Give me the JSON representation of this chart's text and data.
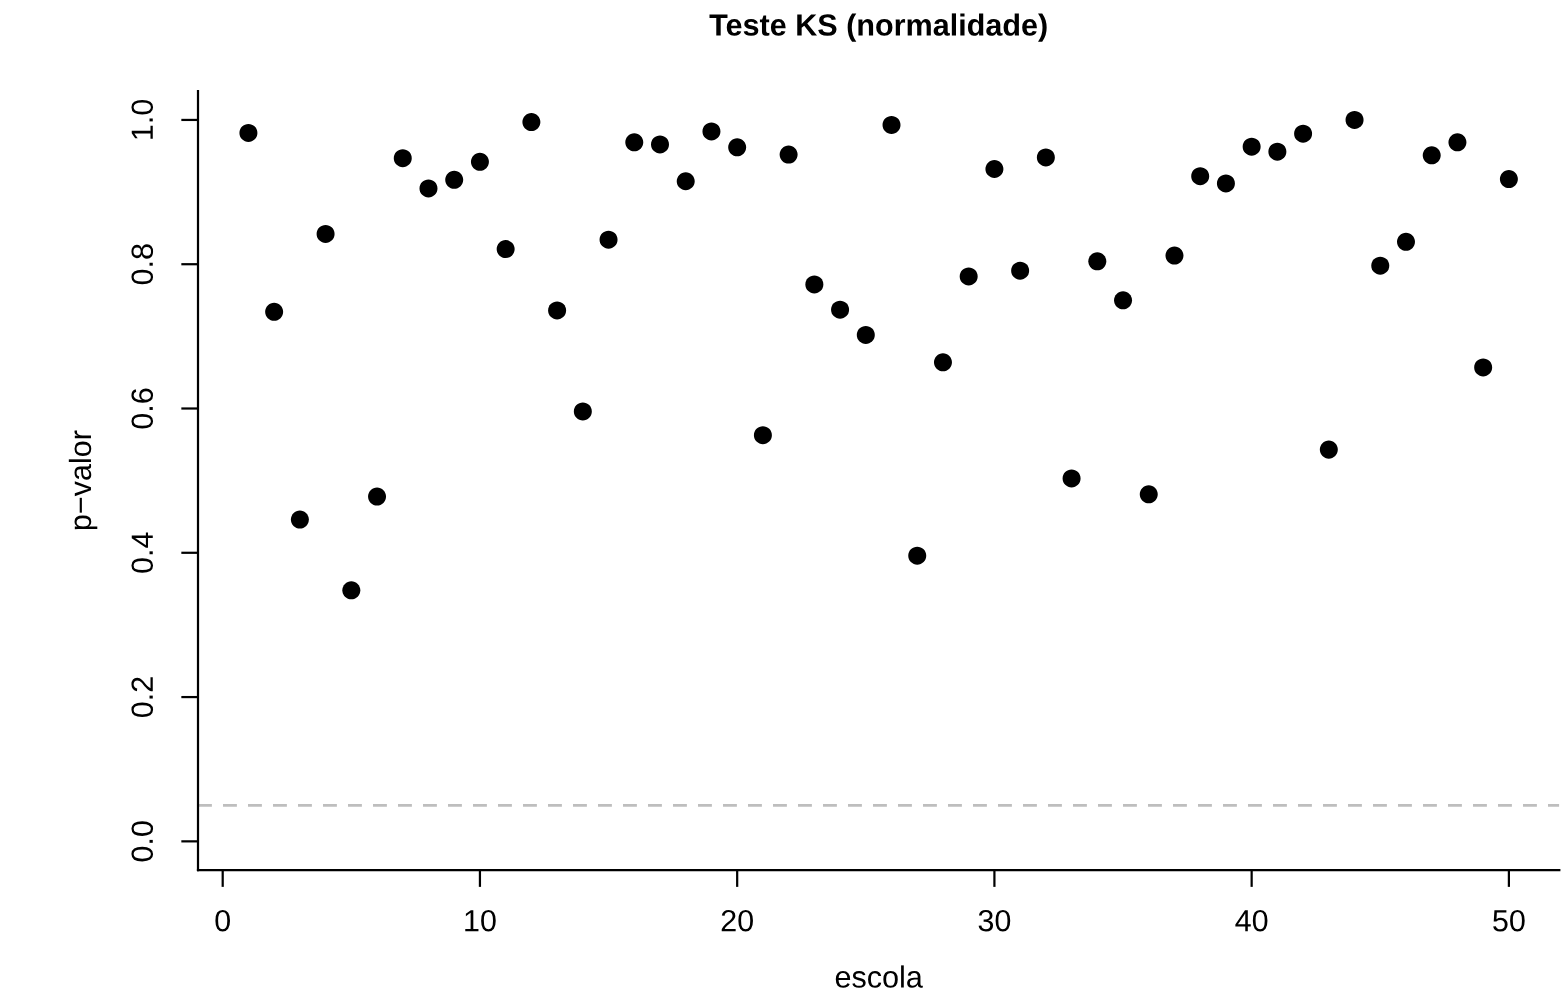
{
  "chart_data": {
    "type": "scatter",
    "title": "Teste KS (normalidade)",
    "xlabel": "escola",
    "ylabel": "p−valor",
    "x": [
      1,
      2,
      3,
      4,
      5,
      6,
      7,
      8,
      9,
      10,
      11,
      12,
      13,
      14,
      15,
      16,
      17,
      18,
      19,
      20,
      21,
      22,
      23,
      24,
      25,
      26,
      27,
      28,
      29,
      30,
      31,
      32,
      33,
      34,
      35,
      36,
      37,
      38,
      39,
      40,
      41,
      42,
      43,
      44,
      45,
      46,
      47,
      48,
      49,
      50
    ],
    "series": [
      {
        "color": "#000000",
        "values": [
          0.982,
          0.734,
          0.446,
          0.842,
          0.348,
          0.478,
          0.947,
          0.905,
          0.917,
          0.942,
          0.821,
          0.997,
          0.736,
          0.596,
          0.834,
          0.969,
          0.966,
          0.915,
          0.984,
          0.962,
          0.563,
          0.952,
          0.772,
          0.737,
          0.702,
          0.993,
          0.396,
          0.664,
          0.783,
          0.932,
          0.791,
          0.948,
          0.503,
          0.804,
          0.75,
          0.481,
          0.812,
          0.922,
          0.912,
          0.963,
          0.956,
          0.981,
          0.543,
          1.0,
          0.798,
          0.831,
          0.951,
          0.969,
          0.657,
          0.918
        ]
      }
    ],
    "marker": "circle",
    "xlim": [
      -0.96,
      51.96
    ],
    "ylim": [
      -0.04,
      1.04
    ],
    "xticks": [
      0,
      10,
      20,
      30,
      40,
      50
    ],
    "yticks": [
      {
        "value": 0,
        "label": "0.0"
      },
      {
        "value": 0.2,
        "label": "0.2"
      },
      {
        "value": 0.4,
        "label": "0.4"
      },
      {
        "value": 0.6,
        "label": "0.6"
      },
      {
        "value": 0.8,
        "label": "0.8"
      },
      {
        "value": 1,
        "label": "1.0"
      }
    ],
    "ref_lines": [
      {
        "axis": "y",
        "value": 0.05,
        "color": "#bebebe",
        "line_style": "dashed"
      }
    ],
    "grid": false,
    "legend": false
  }
}
